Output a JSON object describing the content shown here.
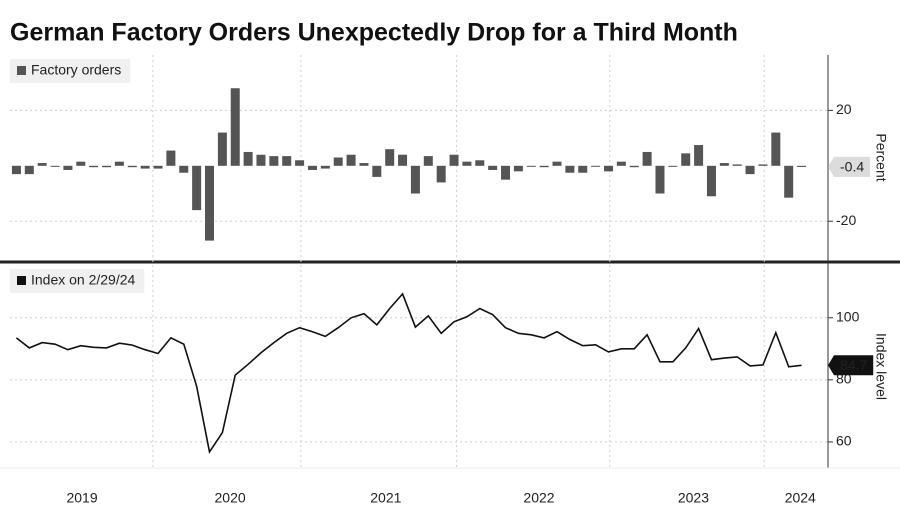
{
  "chart_data": [
    {
      "type": "bar",
      "title": "German Factory Orders Unexpectedly Drop for a Third Month",
      "ylabel": "Percent",
      "series": [
        {
          "name": "Factory orders",
          "color": "#555555",
          "values": [
            -3,
            -3,
            1,
            0,
            -1.5,
            1.5,
            -0.5,
            -0.5,
            1.5,
            -0.5,
            -1,
            -1,
            5.5,
            -2.5,
            -16,
            -27,
            12,
            28,
            5,
            4,
            3.5,
            3.5,
            2,
            -1.5,
            -1,
            3,
            4,
            1,
            -4,
            6,
            4,
            -10,
            3.5,
            -6,
            4,
            1.5,
            2,
            -1.5,
            -5,
            -2,
            0,
            -0.5,
            1.5,
            -2.5,
            -2.5,
            0,
            -2,
            1.5,
            -0.5,
            5,
            -10,
            0,
            4.5,
            7.5,
            -11,
            1,
            0.5,
            -3,
            0.5,
            12,
            -11.5,
            -0.4
          ]
        }
      ],
      "ylim": [
        -34,
        40
      ],
      "yticks": [
        -20,
        20
      ],
      "grid": true
    },
    {
      "type": "line",
      "ylabel": "Index level",
      "series": [
        {
          "name": "Index on 2/29/24",
          "color": "#111111",
          "values": [
            93.5,
            90.3,
            92,
            91.5,
            89.7,
            91,
            90.5,
            90.3,
            91.8,
            91.2,
            89.7,
            88.5,
            93.5,
            91.5,
            78,
            56.8,
            63,
            81.5,
            85,
            88.7,
            92,
            95,
            96.8,
            95.5,
            94,
            96.8,
            100,
            101.3,
            97.7,
            103,
            107.7,
            97,
            100.6,
            95,
            98.7,
            100.3,
            103,
            101,
            96.8,
            95,
            94.5,
            93.5,
            95.5,
            93,
            91,
            91.3,
            89,
            90,
            90,
            94.5,
            85.8,
            85.8,
            90.3,
            96.5,
            86.5,
            87,
            87.4,
            84.5,
            84.8,
            95.2,
            84.2,
            84.7
          ]
        }
      ],
      "ylim": [
        51.6,
        117
      ],
      "yticks": [
        60,
        80,
        100
      ],
      "grid": true,
      "xticks": [
        {
          "value": 5.1,
          "label": "2019"
        },
        {
          "value": 16.6,
          "label": "2020"
        },
        {
          "value": 28.7,
          "label": "2021"
        },
        {
          "value": 40.6,
          "label": "2022"
        },
        {
          "value": 52.6,
          "label": "2023"
        },
        {
          "value": 60.9,
          "label": "2024"
        }
      ]
    }
  ]
}
